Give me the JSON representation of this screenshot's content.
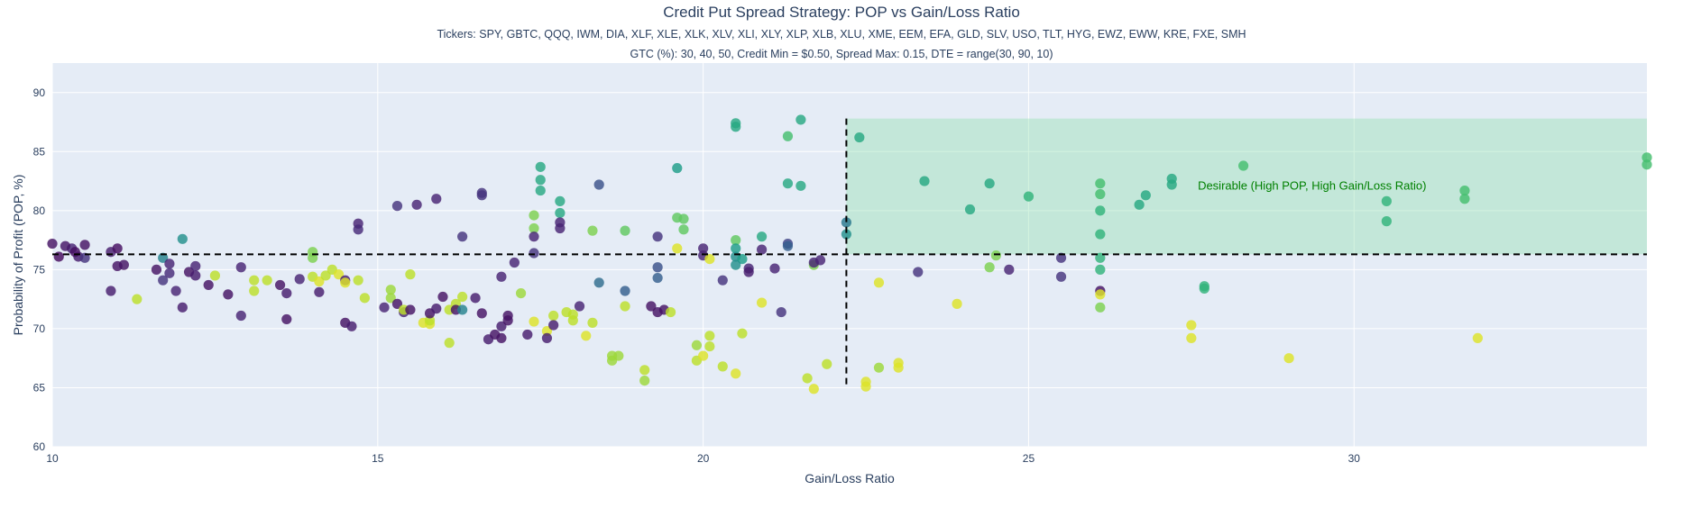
{
  "chart_data": {
    "type": "scatter",
    "title": "Credit Put Spread Strategy: POP vs Gain/Loss Ratio",
    "subtitle_tickers": "Tickers: SPY, GBTC, QQQ, IWM, DIA, XLF, XLE, XLK, XLV, XLI, XLY, XLP, XLB, XLU, XME, EEM, EFA, GLD, SLV, USO, TLT, HYG, EWZ, EWW, KRE, FXE, SMH",
    "subtitle_params": "GTC (%): 30, 40, 50, Credit Min = $0.50,  Spread Max: 0.15, DTE = range(30, 90, 10)",
    "xlabel": "Gain/Loss Ratio",
    "ylabel": "Probability of Profit (POP, %)",
    "xlim": [
      10,
      34.5
    ],
    "ylim": [
      60,
      92.5
    ],
    "xticks": [
      10,
      15,
      20,
      25,
      30
    ],
    "yticks": [
      60,
      65,
      70,
      75,
      80,
      85,
      90
    ],
    "grid": true,
    "threshold_x": 22.2,
    "threshold_y": 76.3,
    "desirable_region": {
      "x": [
        22.2,
        34.5
      ],
      "y": [
        76.3,
        87.8
      ],
      "color": "#90e0b0"
    },
    "annotation": "Desirable (High POP, High Gain/Loss Ratio)",
    "colorscale": "viridis",
    "points": [
      [
        10,
        77.2,
        0.05
      ],
      [
        10.1,
        76.1,
        0.03
      ],
      [
        10.3,
        76.8,
        0.1
      ],
      [
        10.4,
        76.1,
        0.08
      ],
      [
        10.5,
        77.1,
        0.05
      ],
      [
        10.5,
        76,
        0.15
      ],
      [
        10.2,
        77,
        0.06
      ],
      [
        10.35,
        76.5,
        0.04
      ],
      [
        10.9,
        76.5,
        0.08
      ],
      [
        11,
        75.3,
        0.05
      ],
      [
        10.9,
        73.2,
        0.08
      ],
      [
        11.1,
        75.4,
        0.05
      ],
      [
        11,
        76.8,
        0.04
      ],
      [
        11.3,
        72.5,
        0.9
      ],
      [
        11.6,
        75,
        0.05
      ],
      [
        11.7,
        74.1,
        0.15
      ],
      [
        11.7,
        76,
        0.45
      ],
      [
        11.8,
        75.5,
        0.1
      ],
      [
        11.8,
        74.7,
        0.12
      ],
      [
        11.9,
        73.2,
        0.1
      ],
      [
        12,
        71.8,
        0.08
      ],
      [
        12,
        77.6,
        0.5
      ],
      [
        12.1,
        74.8,
        0.05
      ],
      [
        12.2,
        75.3,
        0.1
      ],
      [
        12.2,
        74.5,
        0.08
      ],
      [
        12.4,
        73.7,
        0.05
      ],
      [
        12.5,
        74.5,
        0.9
      ],
      [
        12.7,
        72.9,
        0.05
      ],
      [
        12.9,
        75.2,
        0.1
      ],
      [
        12.9,
        71.1,
        0.1
      ],
      [
        13.1,
        73.2,
        0.9
      ],
      [
        13.1,
        74.1,
        0.9
      ],
      [
        13.3,
        74.1,
        0.9
      ],
      [
        13.5,
        73.7,
        0.05
      ],
      [
        13.6,
        73,
        0.08
      ],
      [
        13.6,
        70.8,
        0.05
      ],
      [
        13.8,
        74.2,
        0.1
      ],
      [
        14,
        76.5,
        0.8
      ],
      [
        14,
        76,
        0.8
      ],
      [
        14,
        74.4,
        0.9
      ],
      [
        14.1,
        74,
        0.95
      ],
      [
        14.1,
        73.1,
        0.08
      ],
      [
        14.2,
        74.5,
        0.9
      ],
      [
        14.3,
        75,
        0.9
      ],
      [
        14.4,
        74.6,
        0.95
      ],
      [
        14.5,
        70.5,
        0.05
      ],
      [
        14.5,
        74.1,
        0.08
      ],
      [
        14.5,
        73.9,
        0.95
      ],
      [
        14.6,
        70.2,
        0.08
      ],
      [
        14.7,
        74.1,
        0.9
      ],
      [
        14.7,
        78.9,
        0.1
      ],
      [
        14.7,
        78.4,
        0.12
      ],
      [
        14.8,
        72.6,
        0.9
      ],
      [
        15.1,
        71.8,
        0.1
      ],
      [
        15.2,
        72.6,
        0.85
      ],
      [
        15.2,
        73.3,
        0.85
      ],
      [
        15.3,
        72.1,
        0.05
      ],
      [
        15.3,
        80.4,
        0.15
      ],
      [
        15.4,
        71.4,
        0.1
      ],
      [
        15.4,
        71.6,
        0.9
      ],
      [
        15.5,
        74.6,
        0.9
      ],
      [
        15.5,
        71.6,
        0.05
      ],
      [
        15.6,
        80.5,
        0.1
      ],
      [
        15.7,
        70.5,
        0.95
      ],
      [
        15.8,
        70.4,
        0.95
      ],
      [
        15.8,
        70.7,
        0.9
      ],
      [
        15.8,
        71.3,
        0.05
      ],
      [
        15.9,
        71.7,
        0.08
      ],
      [
        15.9,
        81,
        0.1
      ],
      [
        16,
        72.7,
        0.05
      ],
      [
        16.1,
        71.6,
        0.9
      ],
      [
        16.1,
        68.8,
        0.9
      ],
      [
        16.2,
        72.1,
        0.9
      ],
      [
        16.2,
        71.6,
        0.05
      ],
      [
        16.3,
        72.7,
        0.9
      ],
      [
        16.3,
        71.6,
        0.45
      ],
      [
        16.3,
        77.8,
        0.15
      ],
      [
        16.5,
        72.6,
        0.08
      ],
      [
        16.6,
        71.3,
        0.05
      ],
      [
        16.6,
        81.3,
        0.15
      ],
      [
        16.6,
        81.5,
        0.15
      ],
      [
        16.7,
        69.1,
        0.08
      ],
      [
        16.8,
        69.5,
        0.05
      ],
      [
        16.9,
        70.2,
        0.08
      ],
      [
        16.9,
        69.2,
        0.05
      ],
      [
        16.9,
        74.4,
        0.1
      ],
      [
        17.0,
        70.7,
        0.05
      ],
      [
        17.0,
        71.1,
        0.05
      ],
      [
        17.1,
        75.6,
        0.1
      ],
      [
        17.2,
        73,
        0.85
      ],
      [
        17.3,
        69.5,
        0.08
      ],
      [
        17.4,
        70.6,
        0.95
      ],
      [
        17.4,
        79.6,
        0.8
      ],
      [
        17.4,
        78.5,
        0.8
      ],
      [
        17.4,
        76.4,
        0.15
      ],
      [
        17.4,
        77.8,
        0.1
      ],
      [
        17.5,
        83.7,
        0.6
      ],
      [
        17.5,
        82.6,
        0.6
      ],
      [
        17.5,
        81.7,
        0.6
      ],
      [
        17.6,
        69.8,
        0.95
      ],
      [
        17.6,
        69.2,
        0.08
      ],
      [
        17.7,
        71.1,
        0.9
      ],
      [
        17.7,
        70.3,
        0.08
      ],
      [
        17.8,
        80.8,
        0.6
      ],
      [
        17.8,
        79.8,
        0.6
      ],
      [
        17.8,
        79.0,
        0.1
      ],
      [
        17.8,
        78.5,
        0.1
      ],
      [
        17.9,
        71.4,
        0.9
      ],
      [
        18.0,
        70.7,
        0.9
      ],
      [
        18.0,
        71.2,
        0.9
      ],
      [
        18.1,
        71.9,
        0.1
      ],
      [
        18.2,
        69.4,
        0.95
      ],
      [
        18.3,
        70.5,
        0.9
      ],
      [
        18.3,
        78.3,
        0.8
      ],
      [
        18.4,
        82.2,
        0.25
      ],
      [
        18.4,
        73.9,
        0.35
      ],
      [
        18.6,
        67.7,
        0.85
      ],
      [
        18.6,
        67.3,
        0.85
      ],
      [
        18.7,
        67.7,
        0.85
      ],
      [
        18.8,
        71.9,
        0.9
      ],
      [
        18.8,
        73.2,
        0.3
      ],
      [
        18.8,
        78.3,
        0.75
      ],
      [
        19.1,
        66.5,
        0.9
      ],
      [
        19.1,
        65.6,
        0.85
      ],
      [
        19.2,
        71.9,
        0.05
      ],
      [
        19.3,
        71.4,
        0.05
      ],
      [
        19.3,
        75.2,
        0.25
      ],
      [
        19.3,
        74.3,
        0.3
      ],
      [
        19.3,
        77.8,
        0.15
      ],
      [
        19.4,
        71.6,
        0.05
      ],
      [
        19.5,
        71.4,
        0.9
      ],
      [
        19.6,
        83.6,
        0.55
      ],
      [
        19.6,
        79.4,
        0.75
      ],
      [
        19.7,
        79.3,
        0.75
      ],
      [
        19.7,
        78.4,
        0.75
      ],
      [
        19.6,
        76.8,
        0.95
      ],
      [
        19.9,
        67.3,
        0.9
      ],
      [
        19.9,
        68.6,
        0.85
      ],
      [
        20,
        76.8,
        0.1
      ],
      [
        20,
        76.2,
        0.1
      ],
      [
        20,
        67.7,
        0.95
      ],
      [
        20.1,
        75.9,
        0.95
      ],
      [
        20.1,
        69.4,
        0.9
      ],
      [
        20.1,
        68.5,
        0.9
      ],
      [
        20.3,
        74.1,
        0.15
      ],
      [
        20.3,
        66.8,
        0.9
      ],
      [
        20.5,
        87.4,
        0.6
      ],
      [
        20.5,
        87.1,
        0.6
      ],
      [
        20.5,
        77.5,
        0.75
      ],
      [
        20.5,
        76.8,
        0.55
      ],
      [
        20.5,
        76.1,
        0.5
      ],
      [
        20.6,
        75.9,
        0.55
      ],
      [
        20.5,
        75.4,
        0.5
      ],
      [
        20.5,
        66.2,
        0.95
      ],
      [
        20.7,
        75.1,
        0.1
      ],
      [
        20.7,
        74.8,
        0.08
      ],
      [
        20.6,
        69.6,
        0.9
      ],
      [
        20.9,
        77.8,
        0.6
      ],
      [
        20.9,
        76.7,
        0.1
      ],
      [
        20.9,
        72.2,
        0.95
      ],
      [
        21.1,
        75.1,
        0.1
      ],
      [
        21.2,
        71.4,
        0.15
      ],
      [
        21.3,
        86.3,
        0.7
      ],
      [
        21.3,
        82.3,
        0.6
      ],
      [
        21.3,
        77.2,
        0.2
      ],
      [
        21.3,
        77.0,
        0.3
      ],
      [
        21.5,
        87.7,
        0.6
      ],
      [
        21.5,
        82.1,
        0.6
      ],
      [
        21.7,
        75.4,
        0.8
      ],
      [
        21.7,
        75.6,
        0.1
      ],
      [
        21.8,
        75.8,
        0.1
      ],
      [
        21.6,
        65.8,
        0.9
      ],
      [
        21.7,
        64.9,
        0.95
      ],
      [
        21.9,
        67,
        0.9
      ],
      [
        22.2,
        79,
        0.4
      ],
      [
        22.2,
        78,
        0.5
      ],
      [
        22.4,
        86.2,
        0.6
      ],
      [
        22.5,
        65.5,
        0.95
      ],
      [
        22.5,
        65.1,
        0.95
      ],
      [
        22.7,
        66.7,
        0.85
      ],
      [
        22.7,
        73.9,
        0.95
      ],
      [
        23.0,
        67.1,
        0.95
      ],
      [
        23.0,
        66.7,
        0.95
      ],
      [
        23.3,
        74.8,
        0.15
      ],
      [
        23.4,
        82.5,
        0.6
      ],
      [
        23.9,
        72.1,
        0.95
      ],
      [
        24.1,
        80.1,
        0.6
      ],
      [
        24.4,
        82.3,
        0.6
      ],
      [
        24.4,
        75.2,
        0.8
      ],
      [
        24.5,
        76.2,
        0.8
      ],
      [
        24.7,
        75,
        0.1
      ],
      [
        25,
        81.2,
        0.65
      ],
      [
        25.5,
        76,
        0.15
      ],
      [
        25.5,
        74.4,
        0.15
      ],
      [
        26.1,
        82.3,
        0.7
      ],
      [
        26.1,
        81.4,
        0.7
      ],
      [
        26.1,
        80,
        0.65
      ],
      [
        26.1,
        78,
        0.65
      ],
      [
        26.1,
        76,
        0.65
      ],
      [
        26.1,
        75,
        0.65
      ],
      [
        26.1,
        73.2,
        0.05
      ],
      [
        26.1,
        72.9,
        0.95
      ],
      [
        26.1,
        71.8,
        0.8
      ],
      [
        26.7,
        80.5,
        0.6
      ],
      [
        26.8,
        81.3,
        0.6
      ],
      [
        27.2,
        82.7,
        0.6
      ],
      [
        27.2,
        82.2,
        0.6
      ],
      [
        27.7,
        73.6,
        0.65
      ],
      [
        27.7,
        73.4,
        0.65
      ],
      [
        28.3,
        83.8,
        0.7
      ],
      [
        27.5,
        70.3,
        0.95
      ],
      [
        27.5,
        69.2,
        0.95
      ],
      [
        29,
        67.5,
        0.95
      ],
      [
        30.5,
        80.8,
        0.65
      ],
      [
        30.5,
        79.1,
        0.65
      ],
      [
        31.7,
        81.7,
        0.7
      ],
      [
        31.7,
        81.0,
        0.7
      ],
      [
        31.9,
        69.2,
        0.95
      ],
      [
        34.5,
        84.5,
        0.7
      ],
      [
        34.5,
        83.9,
        0.7
      ]
    ]
  }
}
